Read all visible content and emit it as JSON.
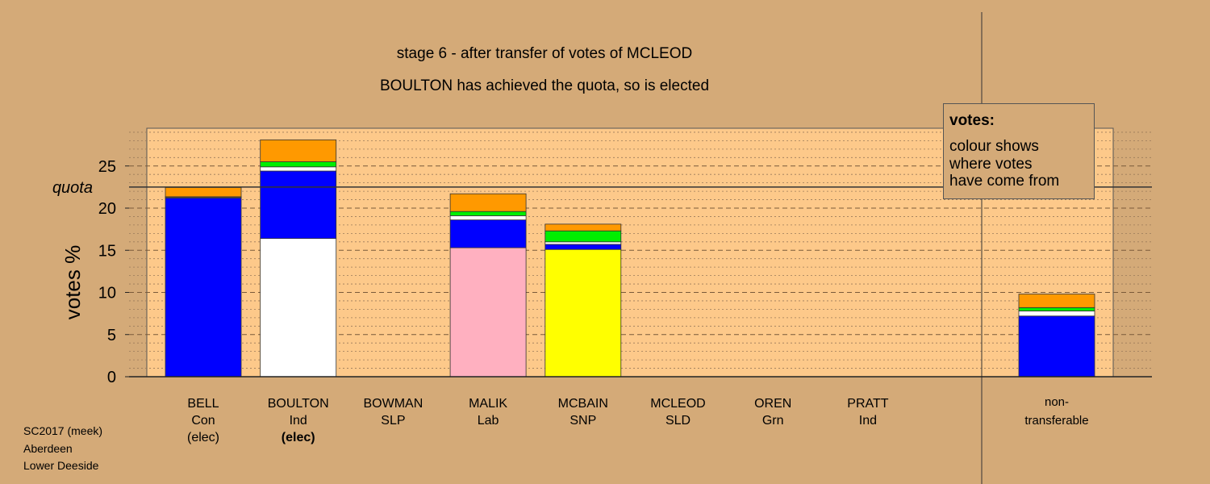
{
  "chart_data": {
    "type": "bar",
    "title": "stage 6 - after transfer of votes of MCLEOD",
    "subtitle": "BOULTON has achieved the quota, so is elected",
    "ylabel": "votes %",
    "ylim": [
      0,
      29.5
    ],
    "yticks": [
      0,
      5,
      10,
      15,
      20,
      25
    ],
    "quota": 22.5,
    "quota_label": "quota",
    "grid": "dashed at ticks, dotted minor",
    "legend": {
      "placement": "top-right",
      "title": "votes:",
      "lines": [
        "colour shows",
        "where votes",
        "have come from"
      ]
    },
    "colors": {
      "Con": "#0000ff",
      "Ind": "#ffffff",
      "Lab": "#ffb0c0",
      "SNP": "#ffff00",
      "Grn": "#00ee00",
      "SLD": "#ff9900",
      "background": "#d4aa78",
      "plot_area": "#fdc98a"
    },
    "categories": [
      {
        "name": "BELL",
        "party": "Con",
        "status": "(elec)",
        "status_bold": false,
        "segments": [
          {
            "source": "Con",
            "value": 21.2
          },
          {
            "source": "Ind",
            "value": 0.1
          },
          {
            "source": "Grn",
            "value": 0.05
          },
          {
            "source": "SLD",
            "value": 1.1
          }
        ]
      },
      {
        "name": "BOULTON",
        "party": "Ind",
        "status": "(elec)",
        "status_bold": true,
        "segments": [
          {
            "source": "Ind",
            "value": 16.4
          },
          {
            "source": "Con",
            "value": 8.0
          },
          {
            "source": "Ind",
            "value": 0.5
          },
          {
            "source": "Grn",
            "value": 0.6
          },
          {
            "source": "SLD",
            "value": 2.6
          }
        ]
      },
      {
        "name": "BOWMAN",
        "party": "SLP",
        "status": "",
        "status_bold": false,
        "segments": []
      },
      {
        "name": "MALIK",
        "party": "Lab",
        "status": "",
        "status_bold": false,
        "segments": [
          {
            "source": "Lab",
            "value": 15.3
          },
          {
            "source": "Con",
            "value": 3.3
          },
          {
            "source": "Ind",
            "value": 0.5
          },
          {
            "source": "Grn",
            "value": 0.5
          },
          {
            "source": "SLD",
            "value": 2.1
          }
        ]
      },
      {
        "name": "MCBAIN",
        "party": "SNP",
        "status": "",
        "status_bold": false,
        "segments": [
          {
            "source": "SNP",
            "value": 15.1
          },
          {
            "source": "Con",
            "value": 0.6
          },
          {
            "source": "Ind",
            "value": 0.3
          },
          {
            "source": "Grn",
            "value": 1.3
          },
          {
            "source": "SLD",
            "value": 0.8
          }
        ]
      },
      {
        "name": "MCLEOD",
        "party": "SLD",
        "status": "",
        "status_bold": false,
        "segments": []
      },
      {
        "name": "OREN",
        "party": "Grn",
        "status": "",
        "status_bold": false,
        "segments": []
      },
      {
        "name": "PRATT",
        "party": "Ind",
        "status": "",
        "status_bold": false,
        "segments": []
      }
    ],
    "nontransferable": {
      "label_line1": "non-",
      "label_line2": "transferable",
      "segments": [
        {
          "source": "Con",
          "value": 7.2
        },
        {
          "source": "Ind",
          "value": 0.6
        },
        {
          "source": "Grn",
          "value": 0.4
        },
        {
          "source": "SLD",
          "value": 1.6
        }
      ]
    }
  },
  "footer": {
    "line1": "SC2017 (meek)",
    "line2": "Aberdeen",
    "line3": "Lower Deeside"
  }
}
